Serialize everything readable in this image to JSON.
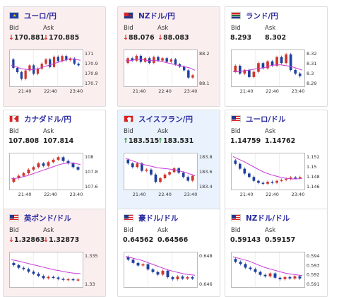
{
  "cards": [
    {
      "pair": "ユーロ/円",
      "flag": "eu",
      "bg": "pink",
      "bid_label": "Bid",
      "ask_label": "Ask",
      "bid": "170.881",
      "ask": "170.885",
      "dir": "down",
      "yticks": [
        "171",
        "170.9",
        "170.8",
        "170.7"
      ],
      "xticks": [
        "21:40",
        "22:40",
        "23:40"
      ]
    },
    {
      "pair": "NZドル/円",
      "flag": "nz",
      "bg": "pink",
      "bid_label": "Bid",
      "ask_label": "Ask",
      "bid": "88.076",
      "ask": "88.083",
      "dir": "down",
      "yticks": [
        "88.2",
        "88.1"
      ],
      "xticks": [
        "21:40",
        "22:40",
        "23:40"
      ]
    },
    {
      "pair": "ランド/円",
      "flag": "za",
      "bg": "white",
      "bid_label": "Bid",
      "ask_label": "Ask",
      "bid": "8.293",
      "ask": "8.302",
      "dir": "none",
      "yticks": [
        "8.32",
        "8.31",
        "8.3",
        "8.29"
      ],
      "xticks": [
        "21:40",
        "22:40",
        "23:40"
      ]
    },
    {
      "pair": "カナダドル/円",
      "flag": "ca",
      "bg": "white",
      "bid_label": "Bid",
      "ask_label": "Ask",
      "bid": "107.808",
      "ask": "107.814",
      "dir": "none",
      "yticks": [
        "108",
        "107.8",
        "107.6"
      ],
      "xticks": [
        "21:40",
        "22:40",
        "23:40"
      ]
    },
    {
      "pair": "スイスフラン/円",
      "flag": "ch",
      "bg": "blue",
      "bid_label": "Bid",
      "ask_label": "Ask",
      "bid": "183.515",
      "ask": "183.531",
      "dir": "up",
      "yticks": [
        "183.8",
        "183.6",
        "183.4"
      ],
      "xticks": [
        "21:40",
        "22:40",
        "23:40"
      ]
    },
    {
      "pair": "ユーロ/ドル",
      "flag": "us",
      "bg": "white",
      "bid_label": "Bid",
      "ask_label": "Ask",
      "bid": "1.14759",
      "ask": "1.14762",
      "dir": "none",
      "yticks": [
        "1.152",
        "1.15",
        "1.148",
        "1.146"
      ],
      "xticks": [
        "21:40",
        "22:40",
        "23:40"
      ]
    },
    {
      "pair": "英ポンド/ドル",
      "flag": "us",
      "bg": "pink",
      "bid_label": "Bid",
      "ask_label": "Ask",
      "bid": "1.32863",
      "ask": "1.32873",
      "dir": "down",
      "yticks": [
        "1.335",
        "1.33"
      ],
      "xticks": []
    },
    {
      "pair": "豪ドル/ドル",
      "flag": "us",
      "bg": "white",
      "bid_label": "Bid",
      "ask_label": "Ask",
      "bid": "0.64562",
      "ask": "0.64566",
      "dir": "none",
      "yticks": [
        "0.648",
        "0.646"
      ],
      "xticks": []
    },
    {
      "pair": "NZドル/ドル",
      "flag": "us",
      "bg": "white",
      "bid_label": "Bid",
      "ask_label": "Ask",
      "bid": "0.59143",
      "ask": "0.59157",
      "dir": "none",
      "yticks": [
        "0.594",
        "0.593",
        "0.592",
        "0.591"
      ],
      "xticks": []
    }
  ],
  "colors": {
    "up": "#d0342c",
    "down": "#1f3f9e",
    "ma": "#c83ad6",
    "title": "#2a2aa0"
  },
  "charts": [
    {
      "ymin": 170.65,
      "ymax": 171.05,
      "ma": [
        170.88,
        170.86,
        170.84,
        170.83,
        170.83,
        170.84,
        170.86,
        170.88,
        170.9,
        170.92,
        170.94,
        170.96,
        170.95,
        170.94
      ],
      "bars": [
        [
          170.95,
          170.85
        ],
        [
          170.85,
          170.8
        ],
        [
          170.8,
          170.72
        ],
        [
          170.72,
          170.82
        ],
        [
          170.82,
          170.88
        ],
        [
          170.88,
          170.78
        ],
        [
          170.78,
          170.84
        ],
        [
          170.84,
          170.9
        ],
        [
          170.9,
          170.95
        ],
        [
          170.95,
          170.86
        ],
        [
          170.86,
          170.98
        ],
        [
          170.98,
          170.93
        ],
        [
          170.93,
          170.99
        ],
        [
          170.99,
          170.94
        ],
        [
          170.94,
          170.96
        ],
        [
          170.96,
          170.9
        ],
        [
          170.9,
          170.88
        ]
      ]
    },
    {
      "ymin": 88.0,
      "ymax": 88.28,
      "ma": [
        88.2,
        88.2,
        88.21,
        88.21,
        88.2,
        88.2,
        88.2,
        88.19,
        88.18,
        88.17,
        88.16,
        88.15,
        88.14,
        88.12
      ],
      "bars": [
        [
          88.18,
          88.22
        ],
        [
          88.22,
          88.2
        ],
        [
          88.2,
          88.24
        ],
        [
          88.24,
          88.19
        ],
        [
          88.19,
          88.22
        ],
        [
          88.22,
          88.18
        ],
        [
          88.18,
          88.23
        ],
        [
          88.23,
          88.2
        ],
        [
          88.2,
          88.22
        ],
        [
          88.22,
          88.19
        ],
        [
          88.19,
          88.21
        ],
        [
          88.21,
          88.17
        ],
        [
          88.17,
          88.15
        ],
        [
          88.15,
          88.12
        ],
        [
          88.12,
          88.06
        ],
        [
          88.06,
          88.08
        ]
      ]
    },
    {
      "ymin": 8.283,
      "ymax": 8.322,
      "ma": [
        8.298,
        8.298,
        8.299,
        8.3,
        8.301,
        8.302,
        8.303,
        8.305,
        8.306,
        8.306,
        8.305,
        8.304,
        8.302,
        8.3
      ],
      "bars": [
        [
          8.298,
          8.305
        ],
        [
          8.305,
          8.296
        ],
        [
          8.296,
          8.3
        ],
        [
          8.3,
          8.292
        ],
        [
          8.292,
          8.298
        ],
        [
          8.298,
          8.308
        ],
        [
          8.308,
          8.302
        ],
        [
          8.302,
          8.31
        ],
        [
          8.31,
          8.305
        ],
        [
          8.305,
          8.315
        ],
        [
          8.315,
          8.308
        ],
        [
          8.308,
          8.318
        ],
        [
          8.318,
          8.3
        ],
        [
          8.3,
          8.296
        ],
        [
          8.296,
          8.293
        ]
      ]
    },
    {
      "ymin": 107.5,
      "ymax": 108.05,
      "ma": [
        107.65,
        107.66,
        107.68,
        107.7,
        107.73,
        107.76,
        107.79,
        107.82,
        107.85,
        107.88,
        107.9,
        107.91,
        107.9,
        107.88
      ],
      "bars": [
        [
          107.6,
          107.66
        ],
        [
          107.66,
          107.7
        ],
        [
          107.7,
          107.74
        ],
        [
          107.74,
          107.8
        ],
        [
          107.8,
          107.84
        ],
        [
          107.84,
          107.9
        ],
        [
          107.9,
          107.86
        ],
        [
          107.86,
          107.92
        ],
        [
          107.92,
          107.96
        ],
        [
          107.96,
          108.0
        ],
        [
          108.0,
          107.94
        ],
        [
          107.94,
          107.9
        ],
        [
          107.9,
          107.84
        ],
        [
          107.84,
          107.8
        ]
      ]
    },
    {
      "ymin": 183.3,
      "ymax": 183.85,
      "ma": [
        183.78,
        183.75,
        183.72,
        183.69,
        183.67,
        183.65,
        183.63,
        183.62,
        183.61,
        183.6,
        183.58,
        183.56,
        183.53,
        183.5
      ],
      "bars": [
        [
          183.76,
          183.7
        ],
        [
          183.7,
          183.64
        ],
        [
          183.64,
          183.7
        ],
        [
          183.7,
          183.58
        ],
        [
          183.58,
          183.6
        ],
        [
          183.6,
          183.52
        ],
        [
          183.52,
          183.4
        ],
        [
          183.4,
          183.46
        ],
        [
          183.46,
          183.52
        ],
        [
          183.52,
          183.56
        ],
        [
          183.56,
          183.62
        ],
        [
          183.62,
          183.55
        ],
        [
          183.55,
          183.48
        ],
        [
          183.48,
          183.42
        ],
        [
          183.42,
          183.5
        ]
      ]
    },
    {
      "ymin": 1.1455,
      "ymax": 1.1525,
      "ma": [
        1.152,
        1.1515,
        1.151,
        1.1504,
        1.1498,
        1.1492,
        1.1487,
        1.1483,
        1.148,
        1.1477,
        1.1475,
        1.1474,
        1.1474,
        1.1475
      ],
      "bars": [
        [
          1.1512,
          1.1505
        ],
        [
          1.1505,
          1.1495
        ],
        [
          1.1495,
          1.1485
        ],
        [
          1.1485,
          1.1478
        ],
        [
          1.1478,
          1.147
        ],
        [
          1.147,
          1.1466
        ],
        [
          1.1466,
          1.1464
        ],
        [
          1.1464,
          1.1468
        ],
        [
          1.1468,
          1.1466
        ],
        [
          1.1466,
          1.147
        ],
        [
          1.147,
          1.1472
        ],
        [
          1.1472,
          1.1474
        ],
        [
          1.1474,
          1.1477
        ],
        [
          1.1477,
          1.1476
        ],
        [
          1.1476,
          1.1478
        ]
      ]
    },
    {
      "ymin": 1.3275,
      "ymax": 1.3375,
      "ma": [
        1.3355,
        1.3352,
        1.3348,
        1.3344,
        1.334,
        1.3336,
        1.3332,
        1.3328,
        1.3324,
        1.3321,
        1.3318,
        1.3315,
        1.3313,
        1.3312
      ],
      "bars": [
        [
          1.3345,
          1.3338
        ],
        [
          1.3338,
          1.333
        ],
        [
          1.333,
          1.3326
        ],
        [
          1.3326,
          1.3318
        ],
        [
          1.3318,
          1.3312
        ],
        [
          1.3312,
          1.3305
        ],
        [
          1.3305,
          1.3298
        ],
        [
          1.3298,
          1.3302
        ],
        [
          1.3302,
          1.33
        ],
        [
          1.33,
          1.3296
        ],
        [
          1.3296,
          1.3293
        ],
        [
          1.3293,
          1.3295
        ],
        [
          1.3295,
          1.3292
        ],
        [
          1.3292,
          1.3294
        ]
      ]
    },
    {
      "ymin": 0.6445,
      "ymax": 0.6495,
      "ma": [
        0.649,
        0.6488,
        0.6486,
        0.6484,
        0.6481,
        0.6478,
        0.6475,
        0.6472,
        0.6469,
        0.6467,
        0.6465,
        0.6463,
        0.6462,
        0.6461
      ],
      "bars": [
        [
          0.6489,
          0.6485
        ],
        [
          0.6485,
          0.648
        ],
        [
          0.648,
          0.6476
        ],
        [
          0.6476,
          0.6478
        ],
        [
          0.6478,
          0.647
        ],
        [
          0.647,
          0.6466
        ],
        [
          0.6466,
          0.6462
        ],
        [
          0.6462,
          0.6468
        ],
        [
          0.6468,
          0.6458
        ],
        [
          0.6458,
          0.6455
        ],
        [
          0.6455,
          0.6459
        ],
        [
          0.6459,
          0.6456
        ],
        [
          0.6456,
          0.6458
        ],
        [
          0.6458,
          0.6456
        ]
      ]
    },
    {
      "ymin": 0.5905,
      "ymax": 0.595,
      "ma": [
        0.5945,
        0.5943,
        0.5941,
        0.5939,
        0.5936,
        0.5933,
        0.593,
        0.5928,
        0.5926,
        0.5924,
        0.5922,
        0.5921,
        0.592,
        0.5919
      ],
      "bars": [
        [
          0.5942,
          0.5938
        ],
        [
          0.5938,
          0.5935
        ],
        [
          0.5935,
          0.593
        ],
        [
          0.593,
          0.5928
        ],
        [
          0.5928,
          0.5924
        ],
        [
          0.5924,
          0.592
        ],
        [
          0.592,
          0.5918
        ],
        [
          0.5918,
          0.5922
        ],
        [
          0.5922,
          0.5916
        ],
        [
          0.5916,
          0.5914
        ],
        [
          0.5914,
          0.5917
        ],
        [
          0.5917,
          0.5915
        ],
        [
          0.5915,
          0.5918
        ],
        [
          0.5918,
          0.5915
        ]
      ]
    }
  ]
}
